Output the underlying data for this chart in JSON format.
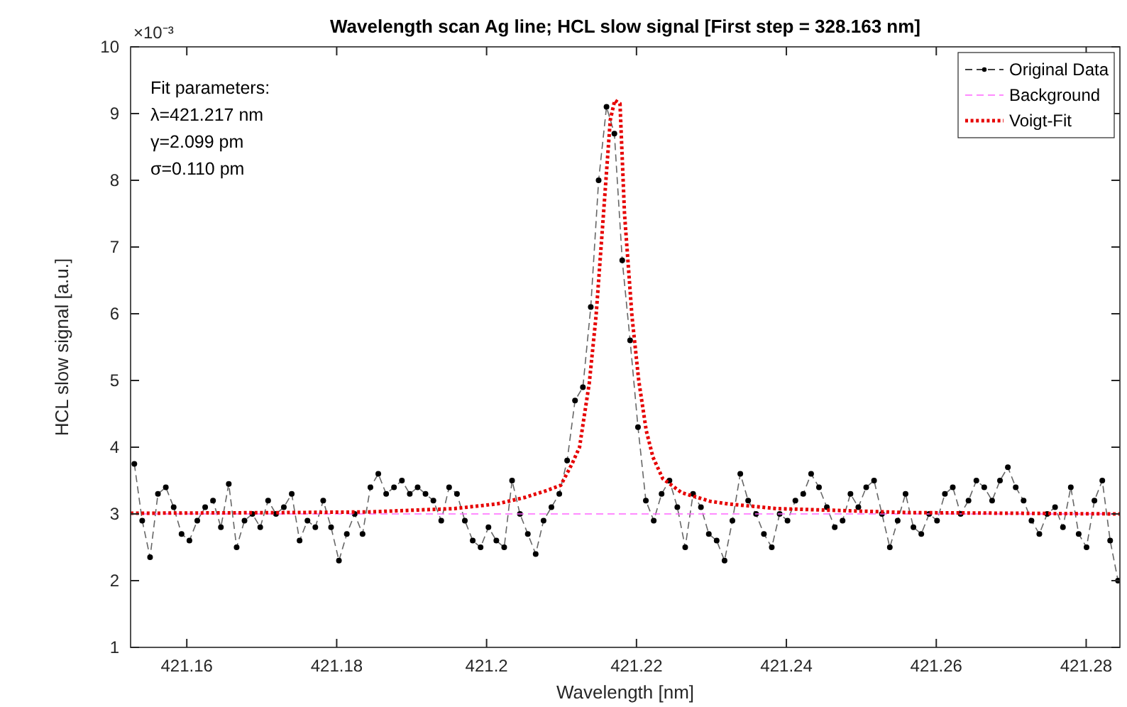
{
  "chart_data": {
    "type": "line",
    "title": "Wavelength scan Ag line; HCL slow signal [First step = 328.163 nm]",
    "xlabel": "Wavelength [nm]",
    "ylabel": "HCL slow signal [a.u.]",
    "annotations": [
      "×10⁻³",
      "Fit parameters:",
      "λ=421.217 nm",
      "γ=2.099 pm",
      "σ=0.110 pm"
    ],
    "xlim": [
      421.1525,
      421.2845
    ],
    "xticks": [
      421.16,
      421.18,
      {
        "value": 421.2,
        "label": "421.2"
      },
      421.22,
      421.24,
      421.26,
      421.28
    ],
    "ylim": [
      1,
      10
    ],
    "yticks": [
      1,
      2,
      3,
      4,
      5,
      6,
      7,
      8,
      9,
      10
    ],
    "grid": false,
    "legend": "top right",
    "series": [
      {
        "name": "Original Data",
        "color": "#000000",
        "marker": "circle",
        "line_style": "dashed",
        "x": [
          421.153,
          421.15405,
          421.1551,
          421.15615,
          421.1572,
          421.15825,
          421.1593,
          421.16035,
          421.1614,
          421.16245,
          421.1635,
          421.16455,
          421.1656,
          421.16665,
          421.1677,
          421.16875,
          421.1698,
          421.17085,
          421.1719,
          421.17295,
          421.174,
          421.17505,
          421.1761,
          421.17715,
          421.1782,
          421.17925,
          421.1803,
          421.18135,
          421.1824,
          421.18345,
          421.1845,
          421.18555,
          421.1866,
          421.18765,
          421.1887,
          421.18975,
          421.1908,
          421.19185,
          421.1929,
          421.19395,
          421.195,
          421.19605,
          421.1971,
          421.19815,
          421.1992,
          421.20025,
          421.2013,
          421.20235,
          421.2034,
          421.20445,
          421.2055,
          421.20655,
          421.2076,
          421.20865,
          421.2097,
          421.21075,
          421.2118,
          421.21285,
          421.2139,
          421.21495,
          421.216,
          421.21705,
          421.2181,
          421.21915,
          421.2202,
          421.22125,
          421.2223,
          421.22335,
          421.2244,
          421.22545,
          421.2265,
          421.22755,
          421.2286,
          421.22965,
          421.2307,
          421.23175,
          421.2328,
          421.23385,
          421.2349,
          421.23595,
          421.237,
          421.23805,
          421.2391,
          421.24015,
          421.2412,
          421.24225,
          421.2433,
          421.24435,
          421.2454,
          421.24645,
          421.2475,
          421.24855,
          421.2496,
          421.25065,
          421.2517,
          421.25275,
          421.2538,
          421.25485,
          421.2559,
          421.25695,
          421.258,
          421.25905,
          421.2601,
          421.26115,
          421.2622,
          421.26325,
          421.2643,
          421.26535,
          421.2664,
          421.26745,
          421.2685,
          421.26955,
          421.2706,
          421.27165,
          421.2727,
          421.27375,
          421.2748,
          421.27585,
          421.2769,
          421.27795,
          421.279,
          421.28005,
          421.2811,
          421.28215,
          421.2832,
          421.28425
        ],
        "values": [
          3.75,
          2.9,
          2.35,
          3.3,
          3.4,
          3.1,
          2.7,
          2.6,
          2.9,
          3.1,
          3.2,
          2.8,
          3.45,
          2.5,
          2.9,
          3.0,
          2.8,
          3.2,
          3.0,
          3.1,
          3.3,
          2.6,
          2.9,
          2.8,
          3.2,
          2.8,
          2.3,
          2.7,
          3.0,
          2.7,
          3.4,
          3.6,
          3.3,
          3.4,
          3.5,
          3.3,
          3.4,
          3.3,
          3.2,
          2.9,
          3.4,
          3.3,
          2.9,
          2.6,
          2.5,
          2.8,
          2.6,
          2.5,
          3.5,
          3.0,
          2.7,
          2.4,
          2.9,
          3.1,
          3.3,
          3.8,
          4.7,
          4.9,
          6.1,
          8.0,
          9.1,
          8.7,
          6.8,
          5.6,
          4.3,
          3.2,
          2.9,
          3.3,
          3.5,
          3.1,
          2.5,
          3.3,
          3.1,
          2.7,
          2.6,
          2.3,
          2.9,
          3.6,
          3.2,
          3.0,
          2.7,
          2.5,
          3.0,
          2.9,
          3.2,
          3.3,
          3.6,
          3.4,
          3.1,
          2.8,
          2.9,
          3.3,
          3.1,
          3.4,
          3.5,
          3.0,
          2.5,
          2.9,
          3.3,
          2.8,
          2.7,
          3.0,
          2.9,
          3.3,
          3.4,
          3.0,
          3.2,
          3.5,
          3.4,
          3.2,
          3.5,
          3.7,
          3.4,
          3.2,
          2.9,
          2.7,
          3.0,
          3.1,
          2.8,
          3.4,
          2.7,
          2.5,
          3.2,
          3.5,
          2.6,
          2.0
        ]
      },
      {
        "name": "Background",
        "color": "#ff66ff",
        "marker": "none",
        "line_style": "dashed",
        "x": [
          421.1525,
          421.2845
        ],
        "values": [
          3,
          3
        ]
      },
      {
        "name": "Voigt-Fit",
        "color": "#e60000",
        "marker": "none",
        "line_style": "dotted",
        "x": [
          421.1525,
          421.173,
          421.1843,
          421.1957,
          421.2014,
          421.2052,
          421.208,
          421.2099,
          421.2114,
          421.2124,
          421.2137,
          421.2146,
          421.2156,
          421.2165,
          421.2171,
          421.2178,
          421.2184,
          421.2194,
          421.2203,
          421.2213,
          421.2222,
          421.2235,
          421.226,
          421.2298,
          421.2322,
          421.2387,
          421.2563,
          421.2845
        ],
        "values": [
          3.01,
          3.02,
          3.03,
          3.08,
          3.15,
          3.25,
          3.35,
          3.43,
          3.75,
          4.0,
          4.96,
          5.96,
          7.5,
          8.9,
          9.2,
          9.15,
          7.5,
          5.96,
          5.0,
          4.25,
          3.85,
          3.53,
          3.32,
          3.19,
          3.15,
          3.08,
          3.02,
          3.0
        ]
      }
    ]
  }
}
